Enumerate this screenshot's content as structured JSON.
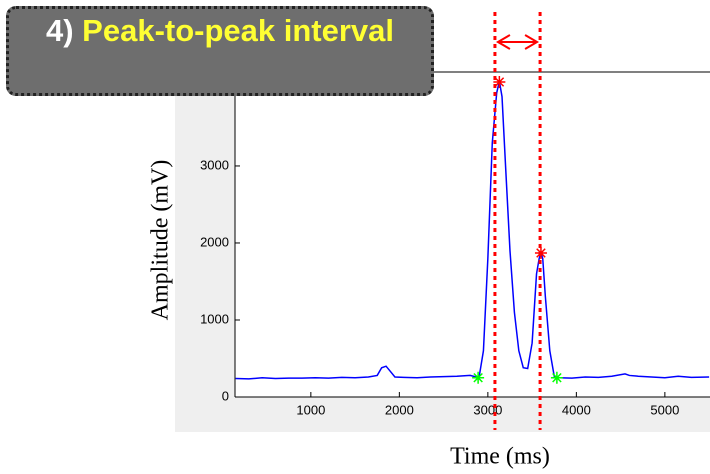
{
  "chart_data": {
    "type": "line",
    "annotation": {
      "number": "4)",
      "text": "Peak-to-peak interval"
    },
    "x_label": "Time (ms)",
    "y_label": "Amplitude (mV)",
    "xlim": [
      143,
      5510
    ],
    "ylim": [
      0,
      4220
    ],
    "xticks": [
      1000,
      2000,
      3000,
      4000,
      5000
    ],
    "yticks": [
      0,
      1000,
      2000,
      3000
    ],
    "background": "#efefef",
    "x": [
      150,
      300,
      450,
      600,
      750,
      900,
      1050,
      1200,
      1350,
      1500,
      1650,
      1750,
      1800,
      1850,
      1900,
      1950,
      2050,
      2200,
      2350,
      2500,
      2650,
      2800,
      2900,
      2950,
      3000,
      3050,
      3100,
      3130,
      3160,
      3200,
      3250,
      3300,
      3350,
      3400,
      3450,
      3500,
      3550,
      3580,
      3600,
      3620,
      3650,
      3700,
      3750,
      3800,
      3950,
      4100,
      4250,
      4400,
      4550,
      4600,
      4700,
      4850,
      5000,
      5150,
      5300,
      5500
    ],
    "series": [
      {
        "color": "#0000ff",
        "values": [
          240,
          235,
          250,
          240,
          245,
          245,
          250,
          245,
          255,
          250,
          260,
          280,
          380,
          400,
          330,
          260,
          255,
          250,
          260,
          265,
          270,
          280,
          250,
          600,
          1800,
          3300,
          3950,
          4100,
          3900,
          3000,
          1900,
          1100,
          600,
          380,
          370,
          700,
          1600,
          1800,
          1870,
          1800,
          1300,
          600,
          270,
          250,
          245,
          260,
          255,
          270,
          300,
          280,
          270,
          260,
          250,
          270,
          255,
          260
        ]
      }
    ],
    "markers": [
      {
        "color": "#ff0000",
        "x": [
          3130,
          3600
        ],
        "values": [
          4090,
          1870
        ]
      },
      {
        "color": "#00ff00",
        "x": [
          2890,
          3780
        ],
        "values": [
          250,
          250
        ]
      }
    ],
    "interval_lines": {
      "color": "#ff0000",
      "x": [
        3080,
        3590
      ]
    }
  }
}
